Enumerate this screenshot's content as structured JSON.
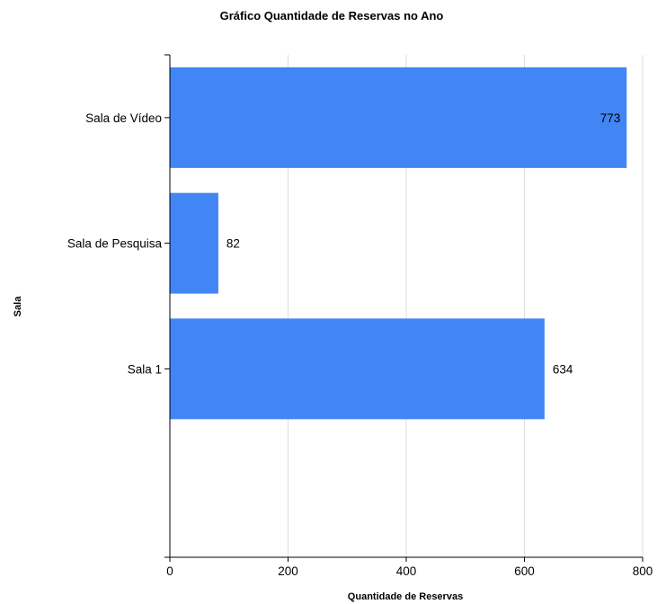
{
  "chart_data": {
    "type": "bar",
    "orientation": "horizontal",
    "title": "Gráfico Quantidade de Reservas no Ano",
    "xlabel": "Quantidade de Reservas",
    "ylabel": "Sala",
    "categories": [
      "Sala de Vídeo",
      "Sala de Pesquisa",
      "Sala 1"
    ],
    "values": [
      773,
      82,
      634
    ],
    "data_labels": [
      "773",
      "82",
      "634"
    ],
    "xlim": [
      0,
      800
    ],
    "x_ticks": [
      "0",
      "200",
      "400",
      "600",
      "800"
    ],
    "grid": "vertical",
    "legend": "none",
    "bar_color": "#4285f4",
    "grid_color": "#dddddd",
    "axis_color": "#000000"
  }
}
